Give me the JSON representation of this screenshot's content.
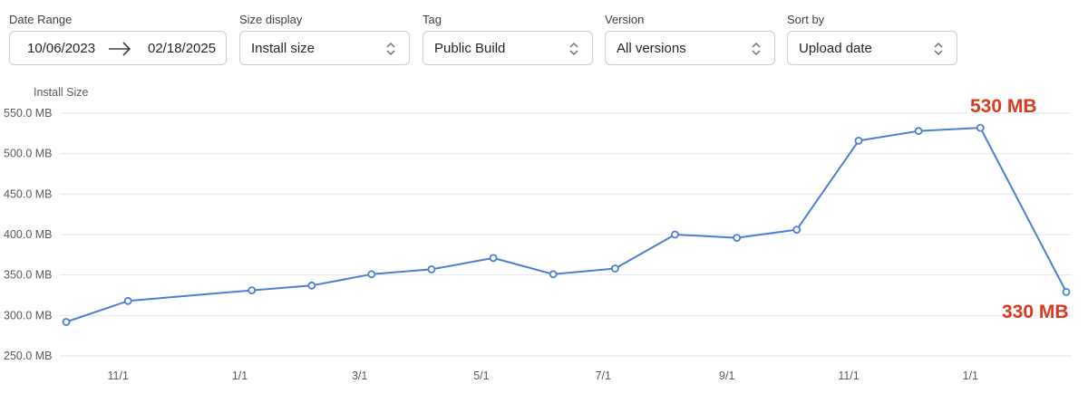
{
  "filters": {
    "date_range": {
      "label": "Date Range",
      "start": "10/06/2023",
      "end": "02/18/2025"
    },
    "size_display": {
      "label": "Size display",
      "value": "Install size"
    },
    "tag": {
      "label": "Tag",
      "value": "Public Build"
    },
    "version": {
      "label": "Version",
      "value": "All versions"
    },
    "sort_by": {
      "label": "Sort by",
      "value": "Upload date"
    }
  },
  "chart_data": {
    "type": "line",
    "ylabel": "Install Size",
    "ylim": [
      250,
      550
    ],
    "y_ticks": [
      250,
      300,
      350,
      400,
      450,
      500,
      550
    ],
    "y_tick_labels": [
      "250.0 MB",
      "300.0 MB",
      "350.0 MB",
      "400.0 MB",
      "450.0 MB",
      "500.0 MB",
      "550.0 MB"
    ],
    "xlim": [
      "2023-10-06",
      "2025-02-18"
    ],
    "x_ticks": [
      "2023-11-01",
      "2024-01-01",
      "2024-03-01",
      "2024-05-01",
      "2024-07-01",
      "2024-09-01",
      "2024-11-01",
      "2025-01-01"
    ],
    "x_tick_labels": [
      "11/1",
      "1/1",
      "3/1",
      "5/1",
      "7/1",
      "9/1",
      "11/1",
      "1/1"
    ],
    "grid": "horizontal",
    "line_color": "#4a7fd4",
    "series": [
      {
        "x": [
          "2023-10-06",
          "2023-11-06",
          "2024-01-07",
          "2024-02-06",
          "2024-03-07",
          "2024-04-06",
          "2024-05-07",
          "2024-06-06",
          "2024-07-07",
          "2024-08-06",
          "2024-09-06",
          "2024-10-06",
          "2024-11-06",
          "2024-12-06",
          "2025-01-06",
          "2025-02-18"
        ],
        "values": [
          292,
          318,
          331,
          337,
          351,
          357,
          371,
          351,
          358,
          400,
          396,
          406,
          516,
          528,
          532,
          329
        ]
      }
    ],
    "annotations": [
      {
        "text": "530 MB",
        "color": "#d8391f"
      },
      {
        "text": "330 MB",
        "color": "#d8391f"
      }
    ]
  }
}
